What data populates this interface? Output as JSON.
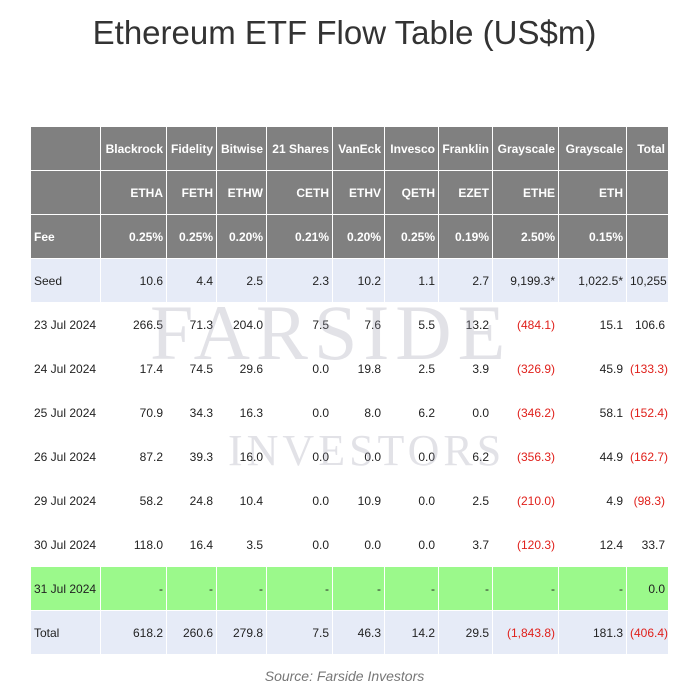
{
  "title": "Ethereum ETF Flow Table (US$m)",
  "watermark": {
    "line1": "FARSIDE",
    "line2": "INVESTORS"
  },
  "source": "Source: Farside Investors",
  "chart_data": {
    "type": "table",
    "columns": [
      "",
      "Blackrock",
      "Fidelity",
      "Bitwise",
      "21 Shares",
      "VanEck",
      "Invesco",
      "Franklin",
      "Grayscale",
      "Grayscale",
      "Total"
    ],
    "tickers": [
      "",
      "ETHA",
      "FETH",
      "ETHW",
      "CETH",
      "ETHV",
      "QETH",
      "EZET",
      "ETHE",
      "ETH",
      ""
    ],
    "fees": [
      "Fee",
      "0.25%",
      "0.25%",
      "0.20%",
      "0.21%",
      "0.20%",
      "0.25%",
      "0.19%",
      "2.50%",
      "0.15%",
      ""
    ],
    "rows": [
      {
        "label": "Seed",
        "style": "seed",
        "cells": [
          "10.6",
          "4.4",
          "2.5",
          "2.3",
          "10.2",
          "1.1",
          "2.7",
          "9,199.3*",
          "1,022.5*",
          "10,255"
        ]
      },
      {
        "label": "23 Jul 2024",
        "style": "plain",
        "cells": [
          "266.5",
          "71.3",
          "204.0",
          "7.5",
          "7.6",
          "5.5",
          "13.2",
          "(484.1)",
          "15.1",
          "106.6"
        ]
      },
      {
        "label": "24 Jul 2024",
        "style": "plain",
        "cells": [
          "17.4",
          "74.5",
          "29.6",
          "0.0",
          "19.8",
          "2.5",
          "3.9",
          "(326.9)",
          "45.9",
          "(133.3)"
        ]
      },
      {
        "label": "25 Jul 2024",
        "style": "plain",
        "cells": [
          "70.9",
          "34.3",
          "16.3",
          "0.0",
          "8.0",
          "6.2",
          "0.0",
          "(346.2)",
          "58.1",
          "(152.4)"
        ]
      },
      {
        "label": "26 Jul 2024",
        "style": "plain",
        "cells": [
          "87.2",
          "39.3",
          "16.0",
          "0.0",
          "0.0",
          "0.0",
          "6.2",
          "(356.3)",
          "44.9",
          "(162.7)"
        ]
      },
      {
        "label": "29 Jul 2024",
        "style": "plain",
        "cells": [
          "58.2",
          "24.8",
          "10.4",
          "0.0",
          "10.9",
          "0.0",
          "2.5",
          "(210.0)",
          "4.9",
          "(98.3)"
        ]
      },
      {
        "label": "30 Jul 2024",
        "style": "plain",
        "cells": [
          "118.0",
          "16.4",
          "3.5",
          "0.0",
          "0.0",
          "0.0",
          "3.7",
          "(120.3)",
          "12.4",
          "33.7"
        ]
      },
      {
        "label": "31 Jul 2024",
        "style": "today",
        "cells": [
          "-",
          "-",
          "-",
          "-",
          "-",
          "-",
          "-",
          "-",
          "-",
          "0.0"
        ]
      },
      {
        "label": "Total",
        "style": "total",
        "cells": [
          "618.2",
          "260.6",
          "279.8",
          "7.5",
          "46.3",
          "14.2",
          "29.5",
          "(1,843.8)",
          "181.3",
          "(406.4)"
        ]
      }
    ],
    "colors": {
      "header": "#808080",
      "seed_row": "#e6ebf7",
      "today_row": "#9bf98b",
      "negative": "#e0201b"
    }
  }
}
